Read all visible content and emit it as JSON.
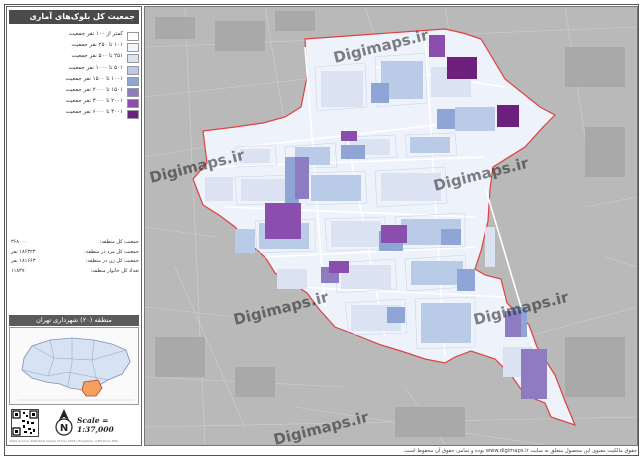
{
  "title": "جمعیت کل بلوک‌های آماری سال ۱۳۹۵",
  "legend": [
    {
      "label": "کمتر از ۱۰۰ نفر جمعیت",
      "color": "#ffffff"
    },
    {
      "label": "۱۰۱ تا ۲۵۰ نفر جمعیت",
      "color": "#f2f4fb"
    },
    {
      "label": "۲۵۱ تا ۵۰۰ نفر جمعیت",
      "color": "#dbe3f2"
    },
    {
      "label": "۵۰۱ تا ۱۰۰۰ نفر جمعیت",
      "color": "#b9cbe6"
    },
    {
      "label": "۱۰۰۱ تا ۱۵۰۰ نفر جمعیت",
      "color": "#8fa5d5"
    },
    {
      "label": "۱۵۰۱ تا ۲۰۰۰ نفر جمعیت",
      "color": "#8e7cc3"
    },
    {
      "label": "۲۰۰۱ تا ۳۰۰۰ نفر جمعیت",
      "color": "#8a4fae"
    },
    {
      "label": "۳۰۰۱ تا ۶۰۰۰ نفر جمعیت",
      "color": "#6d1f7e"
    }
  ],
  "stats": [
    {
      "label": "جمعیت کل منطقه:",
      "value": "۳۶۸۰۰۰"
    },
    {
      "label": "جمعیت کل مرد در منطقه:",
      "value": "۱۸۶۳۲۳ نفر"
    },
    {
      "label": "جمعیت کل زن در منطقه:",
      "value": "۱۸۱۶۶۳ نفر"
    },
    {
      "label": "تعداد کل خانوار منطقه:",
      "value": "۱۱۸۳۷۰"
    }
  ],
  "region_title": "منطقه (۲۰) شهرداری تهران",
  "scale": "Scale = 1:37,000",
  "north_label": "N",
  "credits": "Data Source: Statistical Center of Iran 2016 | Projection: UTM Zone 39N",
  "watermark": "Digimaps.ir",
  "copyright": "حقوق مالکیت معنوی این محصول متعلق به سایت www.digimaps.ir بوده و تمامی حقوق آن محفوظ است.",
  "colors": {
    "boundary": "#e04040",
    "background_map": "#b9b9b9",
    "highlight_region": "#f5a15e"
  }
}
